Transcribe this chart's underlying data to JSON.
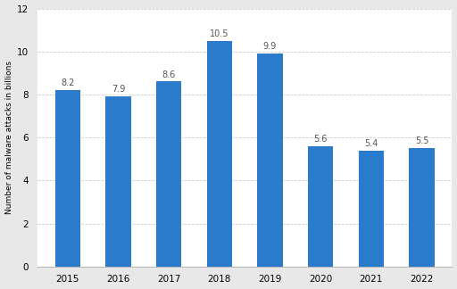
{
  "categories": [
    "2015",
    "2016",
    "2017",
    "2018",
    "2019",
    "2020",
    "2021",
    "2022"
  ],
  "values": [
    8.2,
    7.9,
    8.6,
    10.5,
    9.9,
    5.6,
    5.4,
    5.5
  ],
  "bar_color": "#2b7bcc",
  "background_color": "#e8e8e8",
  "plot_background_color": "#ffffff",
  "ylabel": "Number of malware attacks in billions",
  "ylim": [
    0,
    12
  ],
  "yticks": [
    0,
    2,
    4,
    6,
    8,
    10,
    12
  ],
  "bar_label_fontsize": 7.0,
  "ylabel_fontsize": 6.5,
  "tick_fontsize": 7.5,
  "grid_color": "#cccccc",
  "bar_width": 0.5
}
